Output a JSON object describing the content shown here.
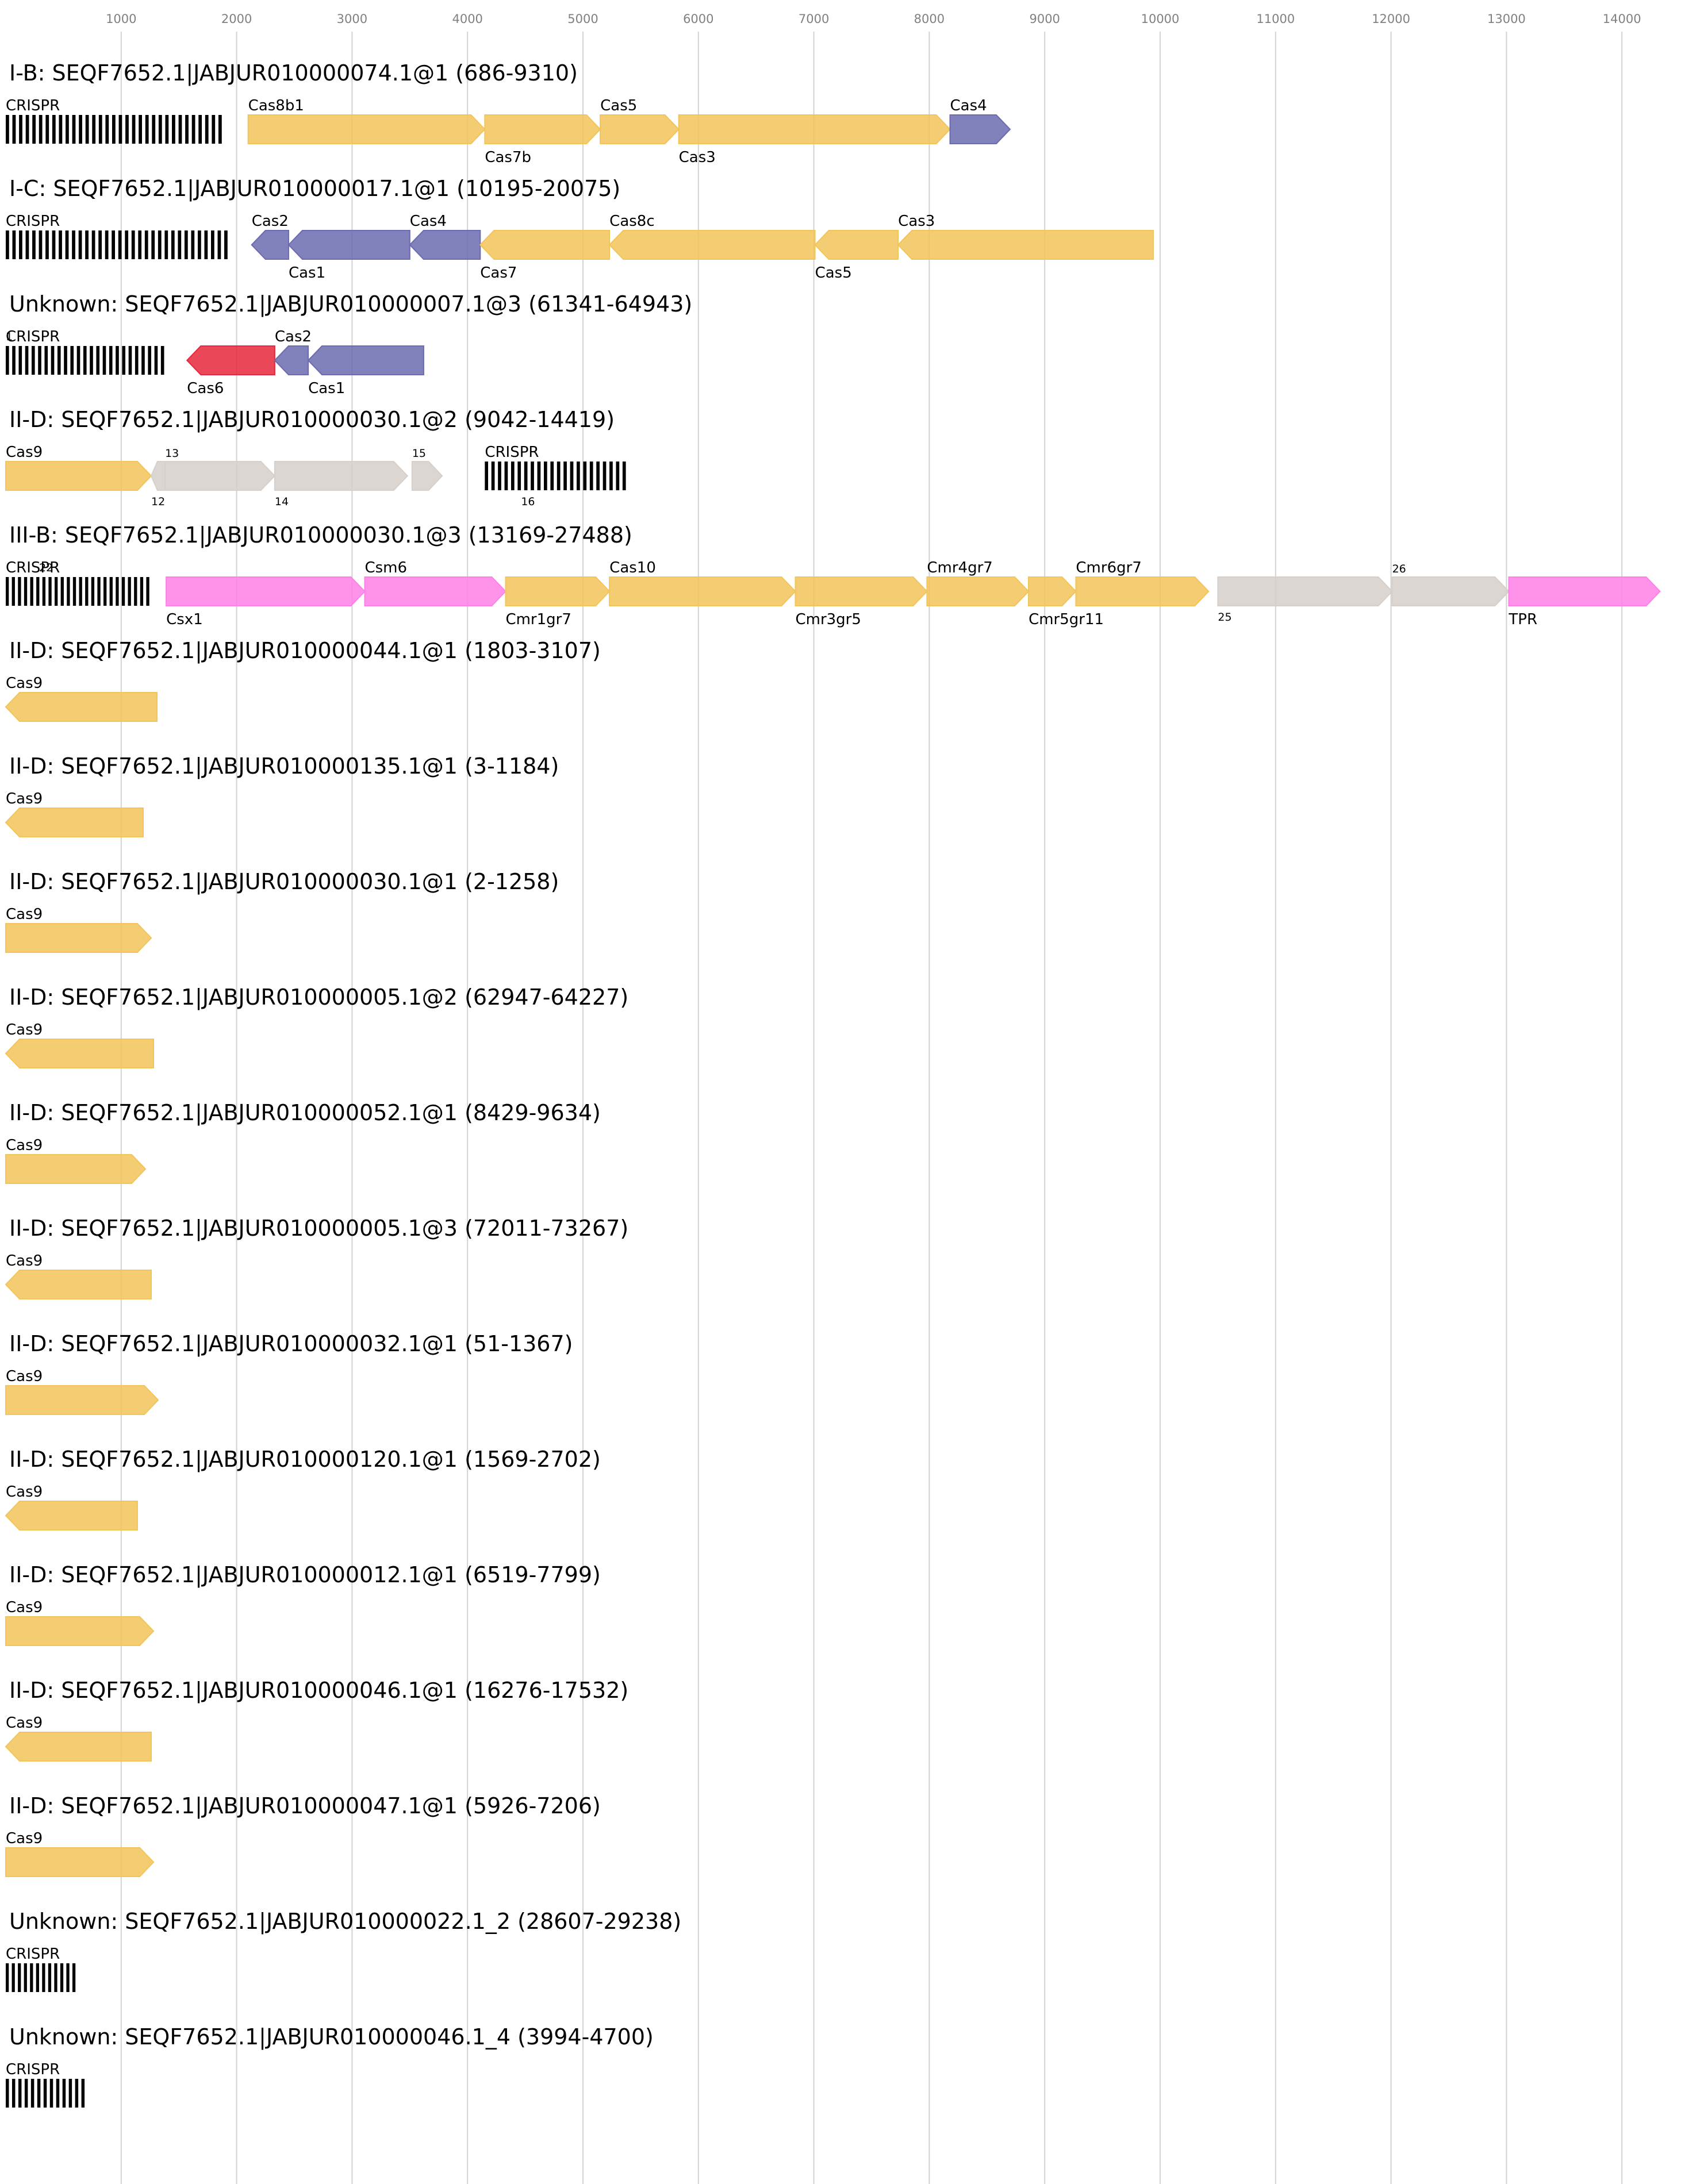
{
  "axis": {
    "ticks": [
      "1000",
      "2000",
      "3000",
      "4000",
      "5000",
      "6000",
      "7000",
      "8000",
      "9000",
      "10000",
      "11000",
      "12000",
      "13000",
      "14000"
    ]
  },
  "colors": {
    "yellow": "#f2c45a",
    "blue": "#6b6bb0",
    "red": "#e6283c",
    "gray": "#d6cfca",
    "pink": "#ff80e6",
    "crispr": "#000000"
  },
  "loci": [
    {
      "title": "I-B: SEQF7652.1|JABJUR010000074.1@1 (686-9310)",
      "crispr": [
        {
          "start": 0,
          "end": 1900,
          "label": "CRISPR",
          "n": 33
        }
      ],
      "genes": [
        {
          "start": 2100,
          "end": 4150,
          "strand": 1,
          "color": "yellow",
          "label": "Cas8b1",
          "pos": "top"
        },
        {
          "start": 4150,
          "end": 5150,
          "strand": 1,
          "color": "yellow",
          "label": "Cas7b",
          "pos": "bottom"
        },
        {
          "start": 5150,
          "end": 5830,
          "strand": 1,
          "color": "yellow",
          "label": "Cas5",
          "pos": "top"
        },
        {
          "start": 5830,
          "end": 8180,
          "strand": 1,
          "color": "yellow",
          "label": "Cas3",
          "pos": "bottom"
        },
        {
          "start": 8180,
          "end": 8700,
          "strand": 1,
          "color": "blue",
          "label": "Cas4",
          "pos": "top"
        }
      ]
    },
    {
      "title": "I-C: SEQF7652.1|JABJUR010000017.1@1 (10195-20075)",
      "crispr": [
        {
          "start": 0,
          "end": 1950,
          "label": "CRISPR",
          "n": 34
        }
      ],
      "genes": [
        {
          "start": 2130,
          "end": 2450,
          "strand": -1,
          "color": "blue",
          "label": "Cas2",
          "pos": "top"
        },
        {
          "start": 2450,
          "end": 3500,
          "strand": -1,
          "color": "blue",
          "label": "Cas1",
          "pos": "bottom"
        },
        {
          "start": 3500,
          "end": 4110,
          "strand": -1,
          "color": "blue",
          "label": "Cas4",
          "pos": "top"
        },
        {
          "start": 4110,
          "end": 5230,
          "strand": -1,
          "color": "yellow",
          "label": "Cas7",
          "pos": "bottom"
        },
        {
          "start": 5230,
          "end": 7010,
          "strand": -1,
          "color": "yellow",
          "label": "Cas8c",
          "pos": "top"
        },
        {
          "start": 7010,
          "end": 7730,
          "strand": -1,
          "color": "yellow",
          "label": "Cas5",
          "pos": "bottom"
        },
        {
          "start": 7730,
          "end": 9940,
          "strand": -1,
          "color": "yellow",
          "label": "Cas3",
          "pos": "top"
        }
      ]
    },
    {
      "title": "Unknown: SEQF7652.1|JABJUR010000007.1@3 (61341-64943)",
      "crispr": [
        {
          "start": 0,
          "end": 1400,
          "label": "CRISPR",
          "n": 25,
          "badge": "1"
        }
      ],
      "genes": [
        {
          "start": 1570,
          "end": 2330,
          "strand": -1,
          "color": "red",
          "label": "Cas6",
          "pos": "bottom"
        },
        {
          "start": 2330,
          "end": 2620,
          "strand": -1,
          "color": "blue",
          "label": "Cas2",
          "pos": "top"
        },
        {
          "start": 2620,
          "end": 3620,
          "strand": -1,
          "color": "blue",
          "label": "Cas1",
          "pos": "bottom"
        }
      ]
    },
    {
      "title": "II-D: SEQF7652.1|JABJUR010000030.1@2 (9042-14419)",
      "crispr": [
        {
          "start": 4150,
          "end": 5400,
          "label": "CRISPR",
          "n": 22,
          "badge": "16"
        }
      ],
      "genes": [
        {
          "start": 0,
          "end": 1260,
          "strand": 1,
          "color": "yellow",
          "label": "Cas9",
          "pos": "top"
        },
        {
          "start": 1260,
          "end": 1380,
          "strand": -1,
          "color": "gray",
          "label": "12",
          "pos": "bottom",
          "small": true
        },
        {
          "start": 1380,
          "end": 2330,
          "strand": 1,
          "color": "gray",
          "label": "13",
          "pos": "top",
          "small": true
        },
        {
          "start": 2330,
          "end": 3480,
          "strand": 1,
          "color": "gray",
          "label": "14",
          "pos": "bottom",
          "small": true
        },
        {
          "start": 3520,
          "end": 3780,
          "strand": 1,
          "color": "gray",
          "label": "15",
          "pos": "top",
          "small": true
        }
      ]
    },
    {
      "title": "III-B: SEQF7652.1|JABJUR010000030.1@3 (13169-27488)",
      "crispr": [
        {
          "start": 0,
          "end": 1270,
          "label": "CRISPR",
          "n": 24,
          "badge": "22"
        }
      ],
      "genes": [
        {
          "start": 1390,
          "end": 3110,
          "strand": 1,
          "color": "pink",
          "label": "Csx1",
          "pos": "bottom"
        },
        {
          "start": 3110,
          "end": 4330,
          "strand": 1,
          "color": "pink",
          "label": "Csm6",
          "pos": "top"
        },
        {
          "start": 4330,
          "end": 5230,
          "strand": 1,
          "color": "yellow",
          "label": "Cmr1gr7",
          "pos": "bottom"
        },
        {
          "start": 5230,
          "end": 6840,
          "strand": 1,
          "color": "yellow",
          "label": "Cas10",
          "pos": "top"
        },
        {
          "start": 6840,
          "end": 7980,
          "strand": 1,
          "color": "yellow",
          "label": "Cmr3gr5",
          "pos": "bottom"
        },
        {
          "start": 7980,
          "end": 8860,
          "strand": 1,
          "color": "yellow",
          "label": "Cmr4gr7",
          "pos": "top"
        },
        {
          "start": 8860,
          "end": 9270,
          "strand": 1,
          "color": "yellow",
          "label": "Cmr5gr11",
          "pos": "bottom"
        },
        {
          "start": 9270,
          "end": 10420,
          "strand": 1,
          "color": "yellow",
          "label": "Cmr6gr7",
          "pos": "top"
        },
        {
          "start": 10500,
          "end": 12010,
          "strand": 1,
          "color": "gray",
          "label": "25",
          "pos": "bottom",
          "small": true
        },
        {
          "start": 12010,
          "end": 13020,
          "strand": 1,
          "color": "gray",
          "label": "26",
          "pos": "top",
          "small": true
        },
        {
          "start": 13020,
          "end": 14330,
          "strand": 1,
          "color": "pink",
          "label": "TPR",
          "pos": "bottom"
        }
      ]
    },
    {
      "title": "II-D: SEQF7652.1|JABJUR010000044.1@1 (1803-3107)",
      "crispr": [],
      "genes": [
        {
          "start": 0,
          "end": 1310,
          "strand": -1,
          "color": "yellow",
          "label": "Cas9",
          "pos": "top"
        }
      ]
    },
    {
      "title": "II-D: SEQF7652.1|JABJUR010000135.1@1 (3-1184)",
      "crispr": [],
      "genes": [
        {
          "start": 0,
          "end": 1190,
          "strand": -1,
          "color": "yellow",
          "label": "Cas9",
          "pos": "top"
        }
      ]
    },
    {
      "title": "II-D: SEQF7652.1|JABJUR010000030.1@1 (2-1258)",
      "crispr": [],
      "genes": [
        {
          "start": 0,
          "end": 1260,
          "strand": 1,
          "color": "yellow",
          "label": "Cas9",
          "pos": "top"
        }
      ]
    },
    {
      "title": "II-D: SEQF7652.1|JABJUR010000005.1@2 (62947-64227)",
      "crispr": [],
      "genes": [
        {
          "start": 0,
          "end": 1280,
          "strand": -1,
          "color": "yellow",
          "label": "Cas9",
          "pos": "top"
        }
      ]
    },
    {
      "title": "II-D: SEQF7652.1|JABJUR010000052.1@1 (8429-9634)",
      "crispr": [],
      "genes": [
        {
          "start": 0,
          "end": 1210,
          "strand": 1,
          "color": "yellow",
          "label": "Cas9",
          "pos": "top"
        }
      ]
    },
    {
      "title": "II-D: SEQF7652.1|JABJUR010000005.1@3 (72011-73267)",
      "crispr": [],
      "genes": [
        {
          "start": 0,
          "end": 1260,
          "strand": -1,
          "color": "yellow",
          "label": "Cas9",
          "pos": "top"
        }
      ]
    },
    {
      "title": "II-D: SEQF7652.1|JABJUR010000032.1@1 (51-1367)",
      "crispr": [],
      "genes": [
        {
          "start": 0,
          "end": 1320,
          "strand": 1,
          "color": "yellow",
          "label": "Cas9",
          "pos": "top"
        }
      ]
    },
    {
      "title": "II-D: SEQF7652.1|JABJUR010000120.1@1 (1569-2702)",
      "crispr": [],
      "genes": [
        {
          "start": 0,
          "end": 1140,
          "strand": -1,
          "color": "yellow",
          "label": "Cas9",
          "pos": "top"
        }
      ]
    },
    {
      "title": "II-D: SEQF7652.1|JABJUR010000012.1@1 (6519-7799)",
      "crispr": [],
      "genes": [
        {
          "start": 0,
          "end": 1280,
          "strand": 1,
          "color": "yellow",
          "label": "Cas9",
          "pos": "top"
        }
      ]
    },
    {
      "title": "II-D: SEQF7652.1|JABJUR010000046.1@1 (16276-17532)",
      "crispr": [],
      "genes": [
        {
          "start": 0,
          "end": 1260,
          "strand": -1,
          "color": "yellow",
          "label": "Cas9",
          "pos": "top"
        }
      ]
    },
    {
      "title": "II-D: SEQF7652.1|JABJUR010000047.1@1 (5926-7206)",
      "crispr": [],
      "genes": [
        {
          "start": 0,
          "end": 1280,
          "strand": 1,
          "color": "yellow",
          "label": "Cas9",
          "pos": "top"
        }
      ]
    },
    {
      "title": "Unknown: SEQF7652.1|JABJUR010000022.1_2 (28607-29238)",
      "crispr": [
        {
          "start": 0,
          "end": 630,
          "label": "CRISPR",
          "n": 12
        }
      ],
      "genes": []
    },
    {
      "title": "Unknown: SEQF7652.1|JABJUR010000046.1_4 (3994-4700)",
      "crispr": [
        {
          "start": 0,
          "end": 710,
          "label": "CRISPR",
          "n": 13
        }
      ],
      "genes": []
    }
  ]
}
